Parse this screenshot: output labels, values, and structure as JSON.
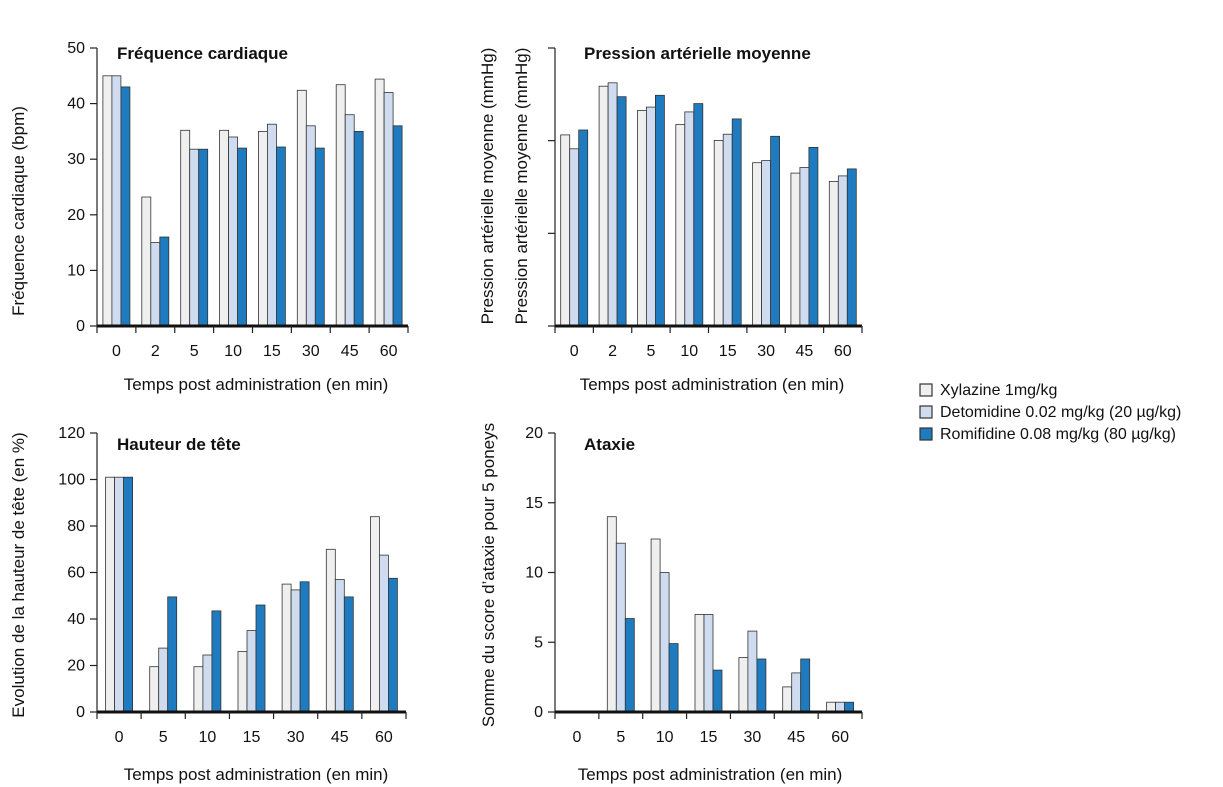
{
  "colors": {
    "xylazine": "#efefef",
    "detomidine": "#cfdcf0",
    "romifidine": "#1f7bbf",
    "outline": "#333333"
  },
  "legend": {
    "placement": "right",
    "entries": [
      "Xylazine 1mg/kg",
      "Detomidine 0.02 mg/kg (20 µg/kg)",
      "Romifidine 0.08 mg/kg (80 µg/kg)"
    ]
  },
  "chart_data": [
    {
      "type": "bar",
      "title": "Fréquence cardiaque",
      "xlabel": "Temps post administration (en min)",
      "ylabels": [
        "Fréquence cardiaque (bpm)"
      ],
      "ylim": [
        0,
        50
      ],
      "yticks": [
        "0",
        "10",
        "20",
        "30",
        "40",
        "50"
      ],
      "categories": [
        "0",
        "2",
        "5",
        "10",
        "15",
        "30",
        "45",
        "60"
      ],
      "series": [
        {
          "name": "Xylazine 1mg/kg",
          "values": [
            45,
            23.2,
            35.2,
            35.2,
            35,
            42.4,
            43.4,
            44.4
          ]
        },
        {
          "name": "Detomidine 0.02 mg/kg (20 µg/kg)",
          "values": [
            45,
            15,
            31.8,
            34,
            36.3,
            36,
            38,
            42
          ]
        },
        {
          "name": "Romifidine 0.08 mg/kg (80 µg/kg)",
          "values": [
            43,
            16,
            31.8,
            32,
            32.2,
            32,
            35,
            36
          ]
        }
      ],
      "grid": false
    },
    {
      "type": "bar",
      "title": "Pression artérielle moyenne",
      "xlabel": "Temps post administration (en min)",
      "ylabels": [
        "Pression artérielle moyenne (mmHg)",
        "Pression artérielle moyenne (mmHg)"
      ],
      "ylim": [
        0,
        40
      ],
      "yticks": [],
      "categories": [
        "0",
        "2",
        "5",
        "10",
        "15",
        "30",
        "45",
        "60"
      ],
      "series": [
        {
          "name": "Xylazine 1mg/kg",
          "values": [
            27.5,
            34.5,
            31,
            29,
            26.7,
            23.5,
            22,
            20.8
          ]
        },
        {
          "name": "Detomidine 0.02 mg/kg (20 µg/kg)",
          "values": [
            25.5,
            35,
            31.5,
            30.8,
            27.6,
            23.8,
            22.8,
            21.6
          ]
        },
        {
          "name": "Romifidine 0.08 mg/kg (80 µg/kg)",
          "values": [
            28.2,
            33,
            33.2,
            32,
            29.8,
            27.3,
            25.7,
            22.6
          ]
        }
      ],
      "grid": false
    },
    {
      "type": "bar",
      "title": "Hauteur de tête",
      "xlabel": "Temps post administration (en min)",
      "ylabels": [
        "Evolution de la hauteur de tête (en %)"
      ],
      "ylim": [
        0,
        120
      ],
      "yticks": [
        "0",
        "20",
        "40",
        "60",
        "80",
        "100",
        "120"
      ],
      "categories": [
        "0",
        "5",
        "10",
        "15",
        "30",
        "45",
        "60"
      ],
      "series": [
        {
          "name": "Xylazine 1mg/kg",
          "values": [
            101,
            19.5,
            19.5,
            26,
            55,
            70,
            84
          ]
        },
        {
          "name": "Detomidine 0.02 mg/kg (20 µg/kg)",
          "values": [
            101,
            27.5,
            24.5,
            35,
            52.5,
            57,
            67.5
          ]
        },
        {
          "name": "Romifidine 0.08 mg/kg (80 µg/kg)",
          "values": [
            101,
            49.5,
            43.5,
            46,
            56,
            49.5,
            57.5
          ]
        }
      ],
      "grid": false
    },
    {
      "type": "bar",
      "title": "Ataxie",
      "xlabel": "Temps post administration (en min)",
      "ylabels": [
        "Somme du score d’ataxie pour 5 poneys"
      ],
      "ylim": [
        0,
        20
      ],
      "yticks": [
        "0",
        "5",
        "10",
        "15",
        "20"
      ],
      "categories": [
        "0",
        "5",
        "10",
        "15",
        "30",
        "45",
        "60"
      ],
      "series": [
        {
          "name": "Xylazine 1mg/kg",
          "values": [
            0,
            14,
            12.4,
            7,
            3.9,
            1.8,
            0.7
          ]
        },
        {
          "name": "Detomidine 0.02 mg/kg (20 µg/kg)",
          "values": [
            0,
            12.1,
            10,
            7,
            5.8,
            2.8,
            0.7
          ]
        },
        {
          "name": "Romifidine 0.08 mg/kg (80 µg/kg)",
          "values": [
            0,
            6.7,
            4.9,
            3,
            3.8,
            3.8,
            0.7
          ]
        }
      ],
      "grid": false
    }
  ]
}
